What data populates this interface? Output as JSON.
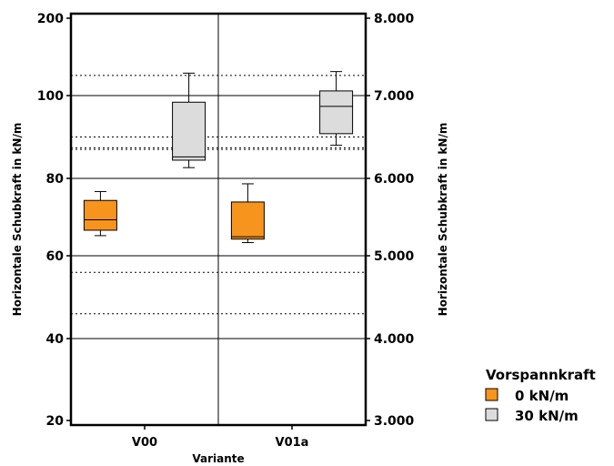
{
  "chart_data": {
    "type": "box",
    "xlabel": "Variante",
    "ylabel_left": "Horizontale Schubkraft in kN/m",
    "ylabel_right": "Horizontale Schubkraft in kN/m",
    "categories": [
      "V00",
      "V01a"
    ],
    "left_axis": {
      "ticks": [
        20,
        40,
        60,
        80,
        100,
        200
      ],
      "tick_labels": [
        "20",
        "40",
        "60",
        "80",
        "100",
        "200"
      ]
    },
    "right_axis": {
      "ticks": [
        3000,
        4000,
        5000,
        6000,
        7000,
        8000
      ],
      "tick_labels": [
        "3.000",
        "4.000",
        "5.000",
        "6.000",
        "7.000",
        "8.000"
      ]
    },
    "legend": {
      "title": "Vorspannkraft",
      "position": "bottom-right",
      "items": [
        {
          "label": "0 kN/m",
          "color": "#f7941d"
        },
        {
          "label": "30 kN/m",
          "color": "#dcdcdc"
        }
      ]
    },
    "series": [
      {
        "name": "0 kN/m",
        "axis": "left",
        "color": "#f7941d",
        "boxes": [
          {
            "category": "V00",
            "min": 65.2,
            "q1": 66.6,
            "median": 69.3,
            "q3": 74.3,
            "max": 76.6
          },
          {
            "category": "V01a",
            "min": 63.4,
            "q1": 64.3,
            "median": 64.9,
            "q3": 73.9,
            "max": 78.6
          }
        ]
      },
      {
        "name": "30 kN/m",
        "axis": "right",
        "color": "#dcdcdc",
        "boxes": [
          {
            "category": "V00",
            "min": 6130,
            "q1": 6220,
            "median": 6260,
            "q3": 6920,
            "max": 7290
          },
          {
            "category": "V01a",
            "min": 6400,
            "q1": 6540,
            "median": 6870,
            "q3": 7060,
            "max": 7310
          }
        ]
      }
    ],
    "dotted_reference_lines_left": [
      90.0,
      87.0,
      56.0
    ],
    "dotted_reference_lines_right": [
      7260,
      6370,
      4300
    ],
    "grid": true
  }
}
